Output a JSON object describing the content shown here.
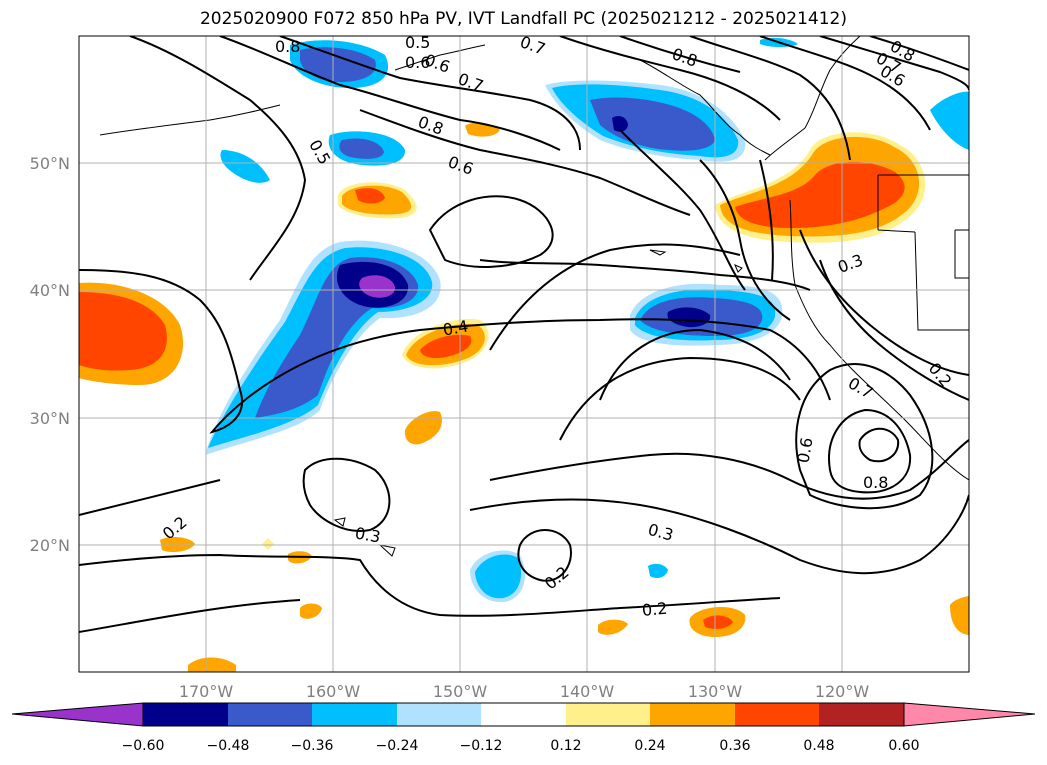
{
  "title": "2025020900 F072 850 hPa PV, IVT Landfall PC (2025021212 - 2025021412)",
  "lon_labels": [
    "170°W",
    "160°W",
    "150°W",
    "140°W",
    "130°W",
    "120°W"
  ],
  "lat_labels": [
    "50°N",
    "40°N",
    "30°N",
    "20°N"
  ],
  "contour_labels": [
    "0.8",
    "0.5",
    "0.6",
    "0.7",
    "0.8",
    "0.6",
    "0.7",
    "0.8",
    "0.7",
    "0.6",
    "0.8",
    "0.5",
    "0.6",
    "0.3",
    "0.4",
    "0.2",
    "0.3",
    "0.3",
    "0.2",
    "0.2",
    "0.6",
    "0.7",
    "0.8",
    "0.2"
  ],
  "colorbar": {
    "ticks": [
      "−0.60",
      "−0.48",
      "−0.36",
      "−0.24",
      "−0.12",
      "0.12",
      "0.24",
      "0.36",
      "0.48",
      "0.60"
    ],
    "colors": [
      "#9933cc",
      "#00008b",
      "#3a5acb",
      "#00bfff",
      "#b0e2ff",
      "#ffffff",
      "#fff08c",
      "#ffa500",
      "#ff4500",
      "#b22222",
      "#ff88aa"
    ]
  }
}
